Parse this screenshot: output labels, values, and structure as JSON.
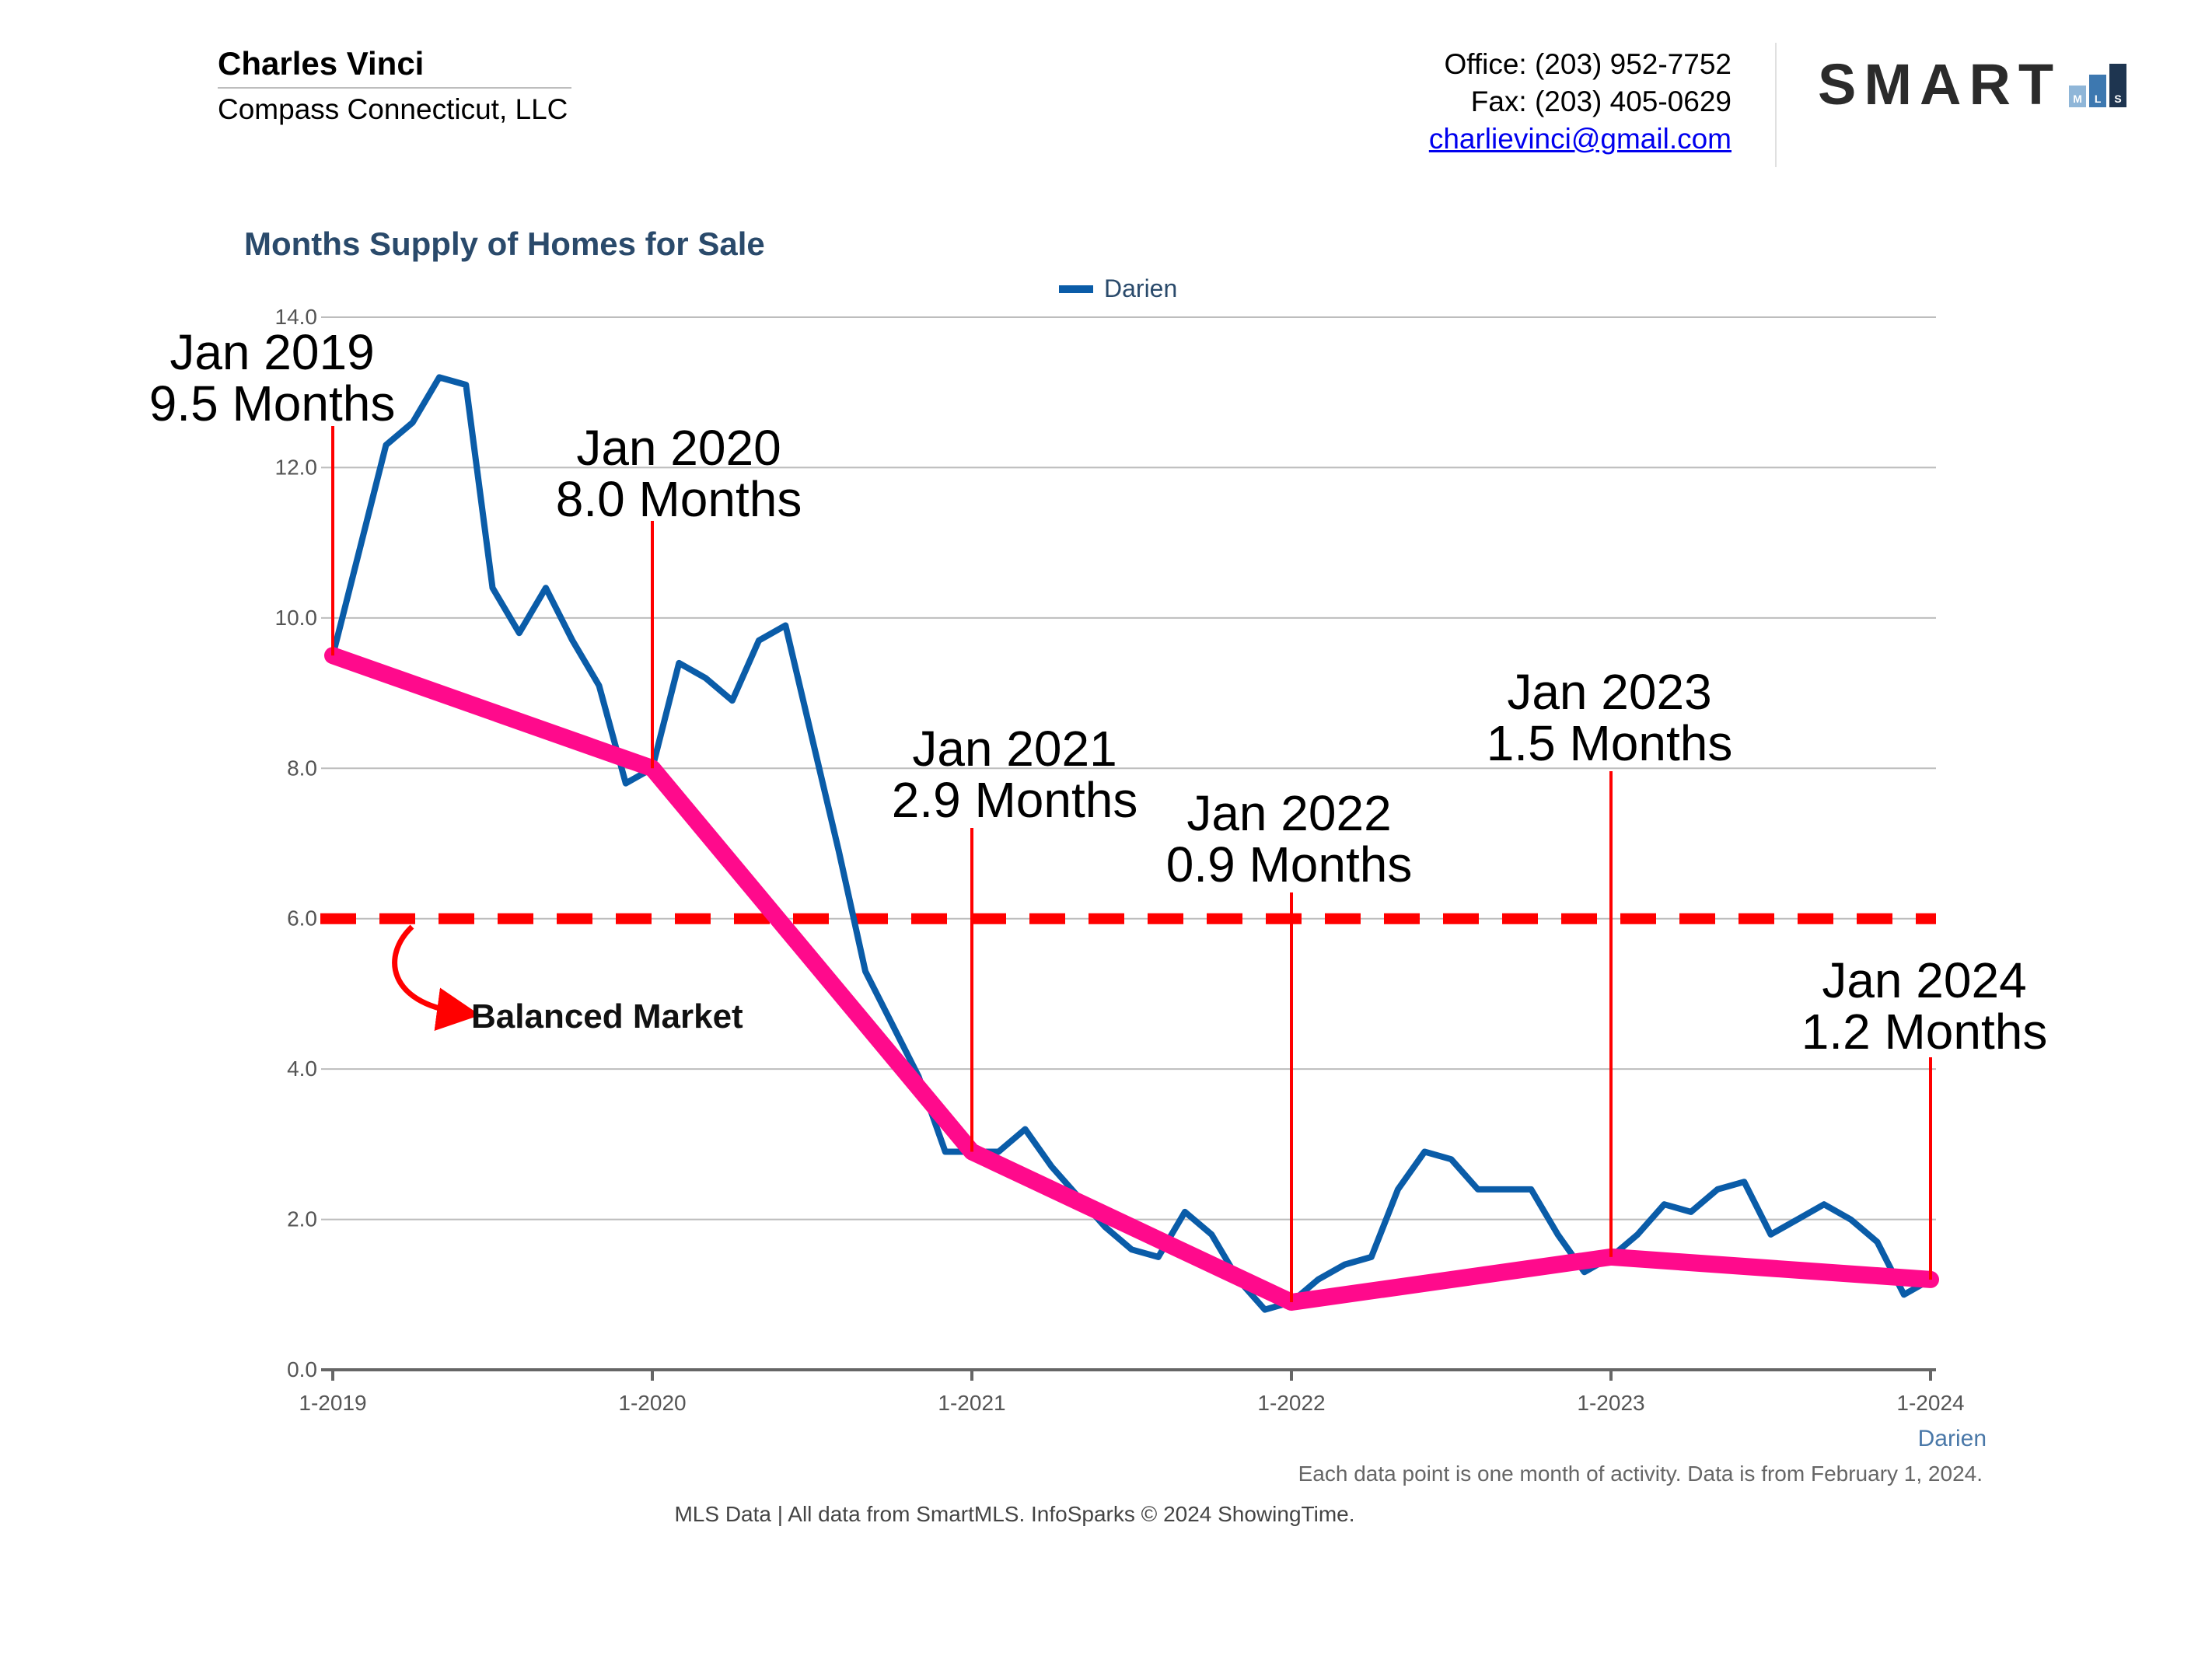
{
  "header": {
    "agent_name": "Charles Vinci",
    "company": "Compass Connecticut, LLC",
    "office": "Office: (203) 952-7752",
    "fax": "Fax: (203) 405-0629",
    "email": "charlievinci@gmail.com",
    "logo_text": "SMART",
    "logo_bars": [
      "M",
      "L",
      "S"
    ],
    "logo_bar_colors": [
      "#8fb6d8",
      "#3d78b0",
      "#1e3550"
    ]
  },
  "chart_data": {
    "type": "line",
    "title": "Months Supply of Homes for Sale",
    "legend": [
      {
        "name": "Darien",
        "color": "#0a5ca8"
      }
    ],
    "ylim": [
      0,
      14
    ],
    "yticks": [
      "0.0",
      "2.0",
      "4.0",
      "6.0",
      "8.0",
      "10.0",
      "12.0",
      "14.0"
    ],
    "xticks": [
      "1-2019",
      "1-2020",
      "1-2021",
      "1-2022",
      "1-2023",
      "1-2024"
    ],
    "xlabel": "Darien",
    "series": [
      {
        "name": "Darien",
        "color": "#0a5ca8",
        "start": "1-2019",
        "values": [
          9.5,
          10.9,
          12.3,
          12.6,
          13.2,
          13.1,
          10.4,
          9.8,
          10.4,
          9.7,
          9.1,
          7.8,
          8.0,
          9.4,
          9.2,
          8.9,
          9.7,
          9.9,
          8.4,
          6.9,
          5.3,
          4.6,
          3.9,
          2.9,
          2.9,
          2.9,
          3.2,
          2.7,
          2.3,
          1.9,
          1.6,
          1.5,
          2.1,
          1.8,
          1.2,
          0.8,
          0.9,
          1.2,
          1.4,
          1.5,
          2.4,
          2.9,
          2.8,
          2.4,
          2.4,
          2.4,
          1.8,
          1.3,
          1.5,
          1.8,
          2.2,
          2.1,
          2.4,
          2.5,
          1.8,
          2.0,
          2.2,
          2.0,
          1.7,
          1.0,
          1.2
        ]
      }
    ],
    "trend": {
      "color": "#ff0a8c",
      "points": [
        {
          "x": "1-2019",
          "y": 9.5
        },
        {
          "x": "1-2020",
          "y": 8.0
        },
        {
          "x": "1-2021",
          "y": 2.9
        },
        {
          "x": "1-2022",
          "y": 0.9
        },
        {
          "x": "1-2023",
          "y": 1.5
        },
        {
          "x": "1-2024",
          "y": 1.2
        }
      ]
    },
    "reference_line": {
      "y": 6.0,
      "color": "#ff0000",
      "label": "Balanced Market"
    },
    "annotations": [
      {
        "x": "1-2019",
        "line1": "Jan 2019",
        "line2": "9.5 Months"
      },
      {
        "x": "1-2020",
        "line1": "Jan 2020",
        "line2": "8.0 Months"
      },
      {
        "x": "1-2021",
        "line1": "Jan 2021",
        "line2": "2.9 Months"
      },
      {
        "x": "1-2022",
        "line1": "Jan 2022",
        "line2": "0.9 Months"
      },
      {
        "x": "1-2023",
        "line1": "Jan 2023",
        "line2": "1.5 Months"
      },
      {
        "x": "1-2024",
        "line1": "Jan 2024",
        "line2": "1.2 Months"
      }
    ]
  },
  "footer": {
    "footnote": "Each data point is one month of activity. Data is from February 1, 2024.",
    "source": "MLS Data | All data from SmartMLS. InfoSparks © 2024 ShowingTime."
  }
}
